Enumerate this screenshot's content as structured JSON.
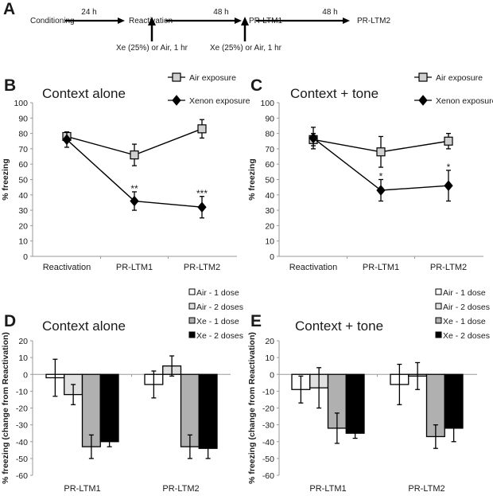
{
  "figure": {
    "panel_labels": [
      "A",
      "B",
      "C",
      "D",
      "E"
    ]
  },
  "timeline": {
    "panel_label": "A",
    "stages": [
      "Conditioning",
      "Reactivation",
      "PR-LTM1",
      "PR-LTM2"
    ],
    "intervals": [
      "24 h",
      "48 h",
      "48 h"
    ],
    "treatments": [
      "Xe (25%) or Air, 1 hr",
      "Xe (25%) or Air, 1 hr"
    ]
  },
  "chart_data": [
    {
      "panel": "B",
      "type": "line",
      "title": "Context alone",
      "xlabel": "",
      "ylabel": "% freezing",
      "categories": [
        "Reactivation",
        "PR-LTM1",
        "PR-LTM2"
      ],
      "ylim": [
        0,
        100
      ],
      "yticks": [
        0,
        10,
        20,
        30,
        40,
        50,
        60,
        70,
        80,
        90,
        100
      ],
      "grid": false,
      "legend_position": "top-right",
      "series": [
        {
          "name": "Air exposure",
          "marker": "square",
          "color": "#d0d0d0",
          "values": [
            78,
            66,
            83
          ],
          "error": [
            3,
            7,
            6
          ]
        },
        {
          "name": "Xenon exposure",
          "marker": "diamond",
          "color": "#000000",
          "values": [
            76,
            36,
            32
          ],
          "error": [
            5,
            6,
            7
          ]
        }
      ],
      "annotations": [
        {
          "category": "PR-LTM1",
          "text": "**",
          "y": 44
        },
        {
          "category": "PR-LTM2",
          "text": "***",
          "y": 41
        }
      ]
    },
    {
      "panel": "C",
      "type": "line",
      "title": "Context + tone",
      "xlabel": "",
      "ylabel": "% freezing",
      "categories": [
        "Reactivation",
        "PR-LTM1",
        "PR-LTM2"
      ],
      "ylim": [
        0,
        100
      ],
      "yticks": [
        0,
        10,
        20,
        30,
        40,
        50,
        60,
        70,
        80,
        90,
        100
      ],
      "grid": false,
      "legend_position": "top-right",
      "series": [
        {
          "name": "Air exposure",
          "marker": "square",
          "color": "#d0d0d0",
          "values": [
            76,
            68,
            75
          ],
          "error": [
            4,
            10,
            5
          ]
        },
        {
          "name": "Xenon exposure",
          "marker": "diamond",
          "color": "#000000",
          "values": [
            77,
            43,
            46
          ],
          "error": [
            7,
            7,
            10
          ]
        }
      ],
      "annotations": [
        {
          "category": "PR-LTM1",
          "text": "*",
          "y": 52
        },
        {
          "category": "PR-LTM2",
          "text": "*",
          "y": 58
        }
      ]
    },
    {
      "panel": "D",
      "type": "bar",
      "title": "Context alone",
      "xlabel": "",
      "ylabel": "% freezing (change from Reactivation)",
      "categories": [
        "PR-LTM1",
        "PR-LTM2"
      ],
      "ylim": [
        -60,
        20
      ],
      "yticks": [
        -60,
        -50,
        -40,
        -30,
        -20,
        -10,
        0,
        10,
        20
      ],
      "grid": false,
      "legend_position": "top-right",
      "series": [
        {
          "name": "Air - 1 dose",
          "color": "#ffffff",
          "values": [
            -2,
            -6
          ],
          "error": [
            11,
            8
          ]
        },
        {
          "name": "Air - 2 doses",
          "color": "#e0e0e0",
          "values": [
            -12,
            5
          ],
          "error": [
            6,
            6
          ]
        },
        {
          "name": "Xe - 1 dose",
          "color": "#b0b0b0",
          "values": [
            -43,
            -43
          ],
          "error": [
            7,
            7
          ]
        },
        {
          "name": "Xe - 2 doses",
          "color": "#000000",
          "values": [
            -40,
            -44
          ],
          "error": [
            3,
            6
          ]
        }
      ]
    },
    {
      "panel": "E",
      "type": "bar",
      "title": "Context + tone",
      "xlabel": "",
      "ylabel": "% freezing (change from Reactivation)",
      "categories": [
        "PR-LTM1",
        "PR-LTM2"
      ],
      "ylim": [
        -60,
        20
      ],
      "yticks": [
        -60,
        -50,
        -40,
        -30,
        -20,
        -10,
        0,
        10,
        20
      ],
      "grid": false,
      "legend_position": "top-right",
      "series": [
        {
          "name": "Air - 1 dose",
          "color": "#ffffff",
          "values": [
            -9,
            -6
          ],
          "error": [
            8,
            12
          ]
        },
        {
          "name": "Air - 2 doses",
          "color": "#e0e0e0",
          "values": [
            -8,
            -1
          ],
          "error": [
            12,
            8
          ]
        },
        {
          "name": "Xe - 1 dose",
          "color": "#b0b0b0",
          "values": [
            -32,
            -37
          ],
          "error": [
            9,
            7
          ]
        },
        {
          "name": "Xe - 2 doses",
          "color": "#000000",
          "values": [
            -35,
            -32
          ],
          "error": [
            3,
            8
          ]
        }
      ]
    }
  ]
}
